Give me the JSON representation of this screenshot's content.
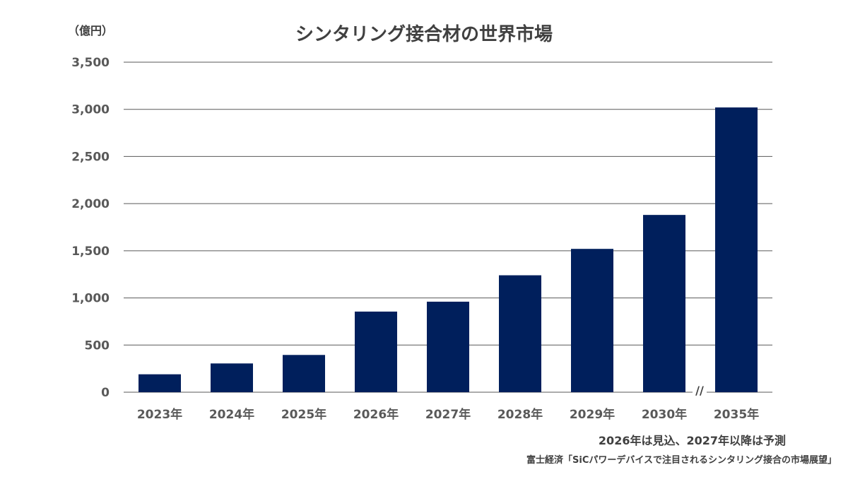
{
  "header": {
    "unit_label": "（億円）",
    "title": "シンタリング接合材の世界市場"
  },
  "footer": {
    "note": "2026年は見込、2027年以降は予測",
    "source": "富士経済「SiCパワーデバイスで注目されるシンタリング接合の市場展望」"
  },
  "chart_data": {
    "type": "bar",
    "title": "シンタリング接合材の世界市場",
    "ylabel": "（億円）",
    "xlabel": "",
    "categories": [
      "2023年",
      "2024年",
      "2025年",
      "2026年",
      "2027年",
      "2028年",
      "2029年",
      "2030年",
      "2035年"
    ],
    "values": [
      190,
      305,
      395,
      855,
      960,
      1240,
      1520,
      1880,
      3020
    ],
    "ylim": [
      0,
      3500
    ],
    "yticks": [
      0,
      500,
      1000,
      1500,
      2000,
      2500,
      3000,
      3500
    ],
    "ytick_labels": [
      "0",
      "500",
      "1,000",
      "1,500",
      "2,000",
      "2,500",
      "3,000",
      "3,500"
    ],
    "axis_break_marker": "//",
    "grid": true,
    "bar_color": "#001f5c",
    "grid_color": "#595959"
  }
}
